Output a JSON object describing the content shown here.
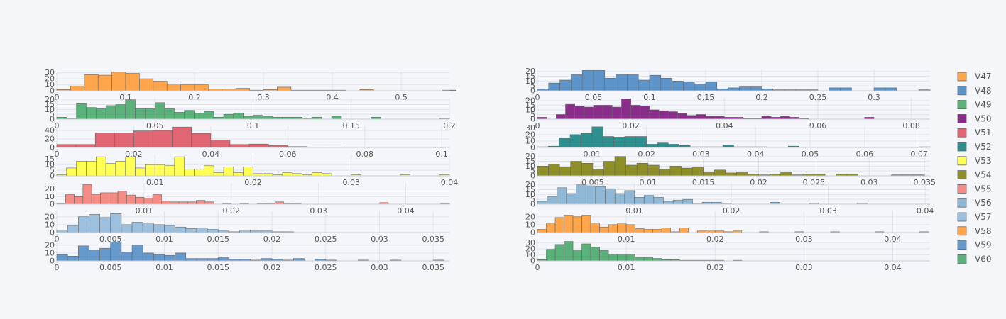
{
  "chart_data": {
    "type": "bar",
    "description": "Grid of 14 histograms (counts per bin), two columns, shared legend.",
    "colors": {
      "V47": "#ffa64d",
      "V48": "#5c94c9",
      "V49": "#5bb17a",
      "V50": "#8a2d8a",
      "V51": "#e06674",
      "V52": "#2e8f8f",
      "V53": "#ffff55",
      "V54": "#8f8f2a",
      "V55": "#f48c85",
      "V56": "#8fb8d6",
      "V57": "#9cc0de",
      "V58": "#ffa64d",
      "V59": "#6699cc",
      "V60": "#5bb17a",
      "background": "#f5f6fa",
      "grid": "#dfe3ee",
      "axis_text": "#555555"
    },
    "legend": {
      "placement": "right",
      "entries": [
        "V47",
        "V48",
        "V49",
        "V50",
        "V51",
        "V52",
        "V53",
        "V54",
        "V55",
        "V56",
        "V57",
        "V58",
        "V59",
        "V60"
      ]
    },
    "panels": [
      {
        "name": "V47",
        "xlim": [
          0,
          0.57
        ],
        "ylim": [
          0,
          32
        ],
        "xticks": [
          0,
          0.1,
          0.2,
          0.3,
          0.4,
          0.5
        ],
        "xtick_labels": [
          "0",
          "0.1",
          "0.2",
          "0.3",
          "0.4",
          "0.5"
        ],
        "yticks": [
          0,
          10,
          20,
          30
        ],
        "ytick_labels": [
          "0",
          "10",
          "20",
          "30"
        ],
        "bin_start": 0,
        "bin_width": 0.02,
        "counts": [
          2,
          8,
          27,
          26,
          31,
          29,
          20,
          16,
          11,
          10,
          10,
          3,
          3,
          4,
          1,
          2,
          6,
          1,
          1,
          1,
          1,
          0,
          2,
          0,
          0,
          0,
          0,
          0,
          1
        ]
      },
      {
        "name": "V48",
        "xlim": [
          0,
          0.35
        ],
        "ylim": [
          0,
          22
        ],
        "xticks": [
          0,
          0.05,
          0.1,
          0.15,
          0.2,
          0.25,
          0.3
        ],
        "xtick_labels": [
          "0",
          "0.05",
          "0.1",
          "0.15",
          "0.2",
          "0.25",
          "0.3"
        ],
        "yticks": [
          0,
          5,
          10,
          15,
          20
        ],
        "ytick_labels": [
          "0",
          "5",
          "10",
          "15",
          "20"
        ],
        "bin_start": 0,
        "bin_width": 0.01,
        "counts": [
          2,
          8,
          11,
          17,
          21,
          21,
          13,
          17,
          17,
          11,
          16,
          13,
          10,
          9,
          7,
          9,
          2,
          3,
          4,
          4,
          2,
          1,
          1,
          1,
          1,
          0,
          3,
          3,
          0,
          0,
          3,
          3,
          0,
          0,
          1
        ]
      },
      {
        "name": "V49",
        "xlim": [
          0,
          0.2
        ],
        "ylim": [
          0,
          22
        ],
        "xticks": [
          0,
          0.05,
          0.1,
          0.15,
          0.2
        ],
        "xtick_labels": [
          "0",
          "0.05",
          "0.1",
          "0.15",
          "0.2"
        ],
        "yticks": [
          0,
          5,
          10,
          15,
          20
        ],
        "ytick_labels": [
          "0",
          "5",
          "10",
          "15",
          "20"
        ],
        "bin_start": 0,
        "bin_width": 0.005,
        "counts": [
          2,
          1,
          16,
          12,
          11,
          14,
          15,
          20,
          11,
          11,
          17,
          11,
          7,
          9,
          6,
          8,
          2,
          5,
          6,
          3,
          4,
          3,
          2,
          2,
          2,
          1,
          2,
          0,
          3,
          0,
          0,
          0,
          2,
          0,
          0,
          0,
          0,
          0,
          0,
          1
        ]
      },
      {
        "name": "V50",
        "xlim": [
          0,
          0.084
        ],
        "ylim": [
          0,
          23
        ],
        "xticks": [
          0,
          0.02,
          0.04,
          0.06,
          0.08
        ],
        "xtick_labels": [
          "0",
          "0.02",
          "0.04",
          "0.06",
          "0.08"
        ],
        "yticks": [
          0,
          5,
          10,
          15,
          20
        ],
        "ytick_labels": [
          "0",
          "5",
          "10",
          "15",
          "20"
        ],
        "bin_start": 0,
        "bin_width": 0.002,
        "counts": [
          2,
          0,
          5,
          16,
          14,
          13,
          15,
          15,
          13,
          22,
          15,
          14,
          10,
          9,
          8,
          6,
          4,
          5,
          3,
          3,
          2,
          2,
          1,
          1,
          3,
          2,
          3,
          2,
          1,
          0,
          0,
          0,
          0,
          0,
          0,
          2,
          0,
          0,
          0,
          0,
          0,
          0,
          0
        ]
      },
      {
        "name": "V51",
        "xlim": [
          0,
          0.102
        ],
        "ylim": [
          0,
          50
        ],
        "xticks": [
          0,
          0.02,
          0.04,
          0.06,
          0.08,
          0.1
        ],
        "xtick_labels": [
          "0",
          "0.02",
          "0.04",
          "0.06",
          "0.08",
          "0.1"
        ],
        "yticks": [
          0,
          20,
          40
        ],
        "ytick_labels": [
          "0",
          "20",
          "40"
        ],
        "bin_start": 0,
        "bin_width": 0.005,
        "counts": [
          7,
          7,
          34,
          34,
          39,
          40,
          48,
          33,
          17,
          7,
          8,
          5,
          2,
          1,
          1,
          0,
          0,
          0,
          0,
          0,
          0
        ]
      },
      {
        "name": "V52",
        "xlim": [
          0,
          0.072
        ],
        "ylim": [
          0,
          33
        ],
        "xticks": [
          0.01,
          0.02,
          0.03,
          0.04,
          0.05,
          0.06,
          0.07
        ],
        "xtick_labels": [
          "0.01",
          "0.02",
          "0.03",
          "0.04",
          "0.05",
          "0.06",
          "0.07"
        ],
        "yticks": [
          0,
          10,
          20,
          30
        ],
        "ytick_labels": [
          "0",
          "10",
          "20",
          "30"
        ],
        "bin_start": 0,
        "bin_width": 0.002,
        "counts": [
          1,
          2,
          15,
          20,
          22,
          32,
          17,
          16,
          17,
          17,
          5,
          7,
          5,
          3,
          1,
          1,
          1,
          4,
          1,
          1,
          1,
          0,
          0,
          2,
          0,
          0,
          0,
          0,
          0,
          0,
          0,
          0,
          0,
          0,
          0,
          1
        ]
      },
      {
        "name": "V53",
        "xlim": [
          0,
          0.04
        ],
        "ylim": [
          0,
          19
        ],
        "xticks": [
          0.01,
          0.02,
          0.03,
          0.04
        ],
        "xtick_labels": [
          "0.01",
          "0.02",
          "0.03",
          "0.04"
        ],
        "yticks": [
          0,
          5,
          10,
          15
        ],
        "ytick_labels": [
          "0",
          "5",
          "10",
          "15"
        ],
        "bin_start": 0,
        "bin_width": 0.001,
        "counts": [
          1,
          7,
          13,
          13,
          17,
          11,
          13,
          17,
          7,
          10,
          10,
          9,
          17,
          6,
          6,
          9,
          3,
          8,
          3,
          8,
          2,
          2,
          1,
          3,
          2,
          1,
          3,
          2,
          0,
          0,
          1,
          0,
          0,
          0,
          0,
          1,
          0,
          0,
          0,
          1
        ]
      },
      {
        "name": "V54",
        "xlim": [
          0,
          0.0355
        ],
        "ylim": [
          0,
          22
        ],
        "xticks": [
          0.005,
          0.01,
          0.015,
          0.02,
          0.025,
          0.03,
          0.035
        ],
        "xtick_labels": [
          "0.005",
          "0.01",
          "0.015",
          "0.02",
          "0.025",
          "0.03",
          "0.035"
        ],
        "yticks": [
          0,
          5,
          10,
          15,
          20
        ],
        "ytick_labels": [
          "0",
          "5",
          "10",
          "15",
          "20"
        ],
        "bin_start": 0,
        "bin_width": 0.001,
        "counts": [
          10,
          12,
          9,
          15,
          13,
          7,
          15,
          20,
          11,
          13,
          11,
          7,
          10,
          8,
          9,
          4,
          6,
          3,
          4,
          2,
          1,
          2,
          4,
          1,
          2,
          2,
          0,
          2,
          2,
          0,
          0,
          0,
          1,
          1,
          1
        ]
      },
      {
        "name": "V55",
        "xlim": [
          0,
          0.045
        ],
        "ylim": [
          0,
          28
        ],
        "xticks": [
          0.01,
          0.02,
          0.03,
          0.04
        ],
        "xtick_labels": [
          "0.01",
          "0.02",
          "0.03",
          "0.04"
        ],
        "yticks": [
          0,
          10,
          20
        ],
        "ytick_labels": [
          "0",
          "10",
          "20"
        ],
        "bin_start": 0,
        "bin_width": 0.001,
        "counts": [
          1,
          13,
          10,
          26,
          13,
          15,
          15,
          17,
          12,
          9,
          8,
          13,
          4,
          3,
          3,
          3,
          5,
          3,
          0,
          1,
          0,
          1,
          0,
          1,
          1,
          3,
          1,
          1,
          0,
          0,
          0,
          0,
          0,
          0,
          0,
          0,
          0,
          2,
          0,
          0,
          0,
          0,
          0,
          0,
          1
        ]
      },
      {
        "name": "V56",
        "xlim": [
          0,
          0.0405
        ],
        "ylim": [
          0,
          22
        ],
        "xticks": [
          0.01,
          0.02,
          0.03,
          0.04
        ],
        "xtick_labels": [
          "0.01",
          "0.02",
          "0.03",
          "0.04"
        ],
        "yticks": [
          0,
          5,
          10,
          15,
          20
        ],
        "ytick_labels": [
          "0",
          "5",
          "10",
          "15",
          "20"
        ],
        "bin_start": 0,
        "bin_width": 0.001,
        "counts": [
          3,
          8,
          17,
          11,
          20,
          19,
          18,
          16,
          11,
          14,
          7,
          9,
          7,
          3,
          4,
          5,
          1,
          2,
          2,
          1,
          0,
          0,
          0,
          0,
          2,
          0,
          0,
          0,
          1,
          0,
          0,
          0,
          0,
          1,
          0,
          0,
          0,
          0,
          0,
          0
        ]
      },
      {
        "name": "V57",
        "xlim": [
          0,
          0.0365
        ],
        "ylim": [
          0,
          27
        ],
        "xticks": [
          0,
          0.005,
          0.01,
          0.015,
          0.02,
          0.025,
          0.03,
          0.035
        ],
        "xtick_labels": [
          "0",
          "0.005",
          "0.01",
          "0.015",
          "0.02",
          "0.025",
          "0.03",
          "0.035"
        ],
        "yticks": [
          0,
          10,
          20
        ],
        "ytick_labels": [
          "0",
          "10",
          "20"
        ],
        "bin_start": 0,
        "bin_width": 0.001,
        "counts": [
          3,
          9,
          20,
          23,
          19,
          24,
          10,
          13,
          12,
          10,
          9,
          7,
          5,
          6,
          4,
          2,
          1,
          3,
          2,
          2,
          1,
          1,
          0,
          0,
          0,
          0,
          0,
          0,
          0,
          0,
          0,
          0,
          0,
          0,
          0,
          0
        ]
      },
      {
        "name": "V58",
        "xlim": [
          0,
          0.0442
        ],
        "ylim": [
          0,
          27
        ],
        "xticks": [
          0.01,
          0.02,
          0.03,
          0.04
        ],
        "xtick_labels": [
          "0.01",
          "0.02",
          "0.03",
          "0.04"
        ],
        "yticks": [
          0,
          10,
          20
        ],
        "ytick_labels": [
          "0",
          "10",
          "20"
        ],
        "bin_start": 0,
        "bin_width": 0.001,
        "counts": [
          4,
          12,
          19,
          22,
          20,
          22,
          12,
          7,
          10,
          12,
          10,
          5,
          4,
          4,
          6,
          1,
          6,
          0,
          2,
          3,
          2,
          1,
          2,
          0,
          0,
          1,
          0,
          0,
          0,
          1,
          0,
          0,
          0,
          1,
          0,
          0,
          0,
          0,
          1,
          0,
          0,
          0,
          0,
          1
        ]
      },
      {
        "name": "V59",
        "xlim": [
          0,
          0.0365
        ],
        "ylim": [
          0,
          27
        ],
        "xticks": [
          0,
          0.005,
          0.01,
          0.015,
          0.02,
          0.025,
          0.03,
          0.035
        ],
        "xtick_labels": [
          "0",
          "0.005",
          "0.01",
          "0.015",
          "0.02",
          "0.025",
          "0.03",
          "0.035"
        ],
        "yticks": [
          0,
          10,
          20
        ],
        "ytick_labels": [
          "0",
          "10",
          "20"
        ],
        "bin_start": 0,
        "bin_width": 0.001,
        "counts": [
          8,
          6,
          19,
          14,
          16,
          24,
          11,
          20,
          10,
          8,
          7,
          10,
          3,
          3,
          3,
          4,
          2,
          2,
          1,
          3,
          2,
          1,
          3,
          0,
          2,
          1,
          0,
          0,
          1,
          0,
          0,
          1,
          0,
          0,
          0,
          1
        ]
      },
      {
        "name": "V60",
        "xlim": [
          0,
          0.0442
        ],
        "ylim": [
          0,
          35
        ],
        "xticks": [
          0,
          0.01,
          0.02,
          0.03,
          0.04
        ],
        "xtick_labels": [
          "0",
          "0.01",
          "0.02",
          "0.03",
          "0.04"
        ],
        "yticks": [
          0,
          10,
          20,
          30
        ],
        "ytick_labels": [
          "0",
          "10",
          "20",
          "30"
        ],
        "bin_start": 0,
        "bin_width": 0.001,
        "counts": [
          2,
          19,
          27,
          32,
          18,
          28,
          23,
          17,
          11,
          11,
          11,
          6,
          6,
          4,
          2,
          2,
          1,
          1,
          1,
          1,
          1,
          0,
          1,
          0,
          0,
          0,
          0,
          0,
          0,
          0,
          0,
          0,
          0,
          0,
          0,
          0,
          0,
          0,
          0,
          0,
          0,
          0,
          0,
          0
        ]
      }
    ]
  }
}
